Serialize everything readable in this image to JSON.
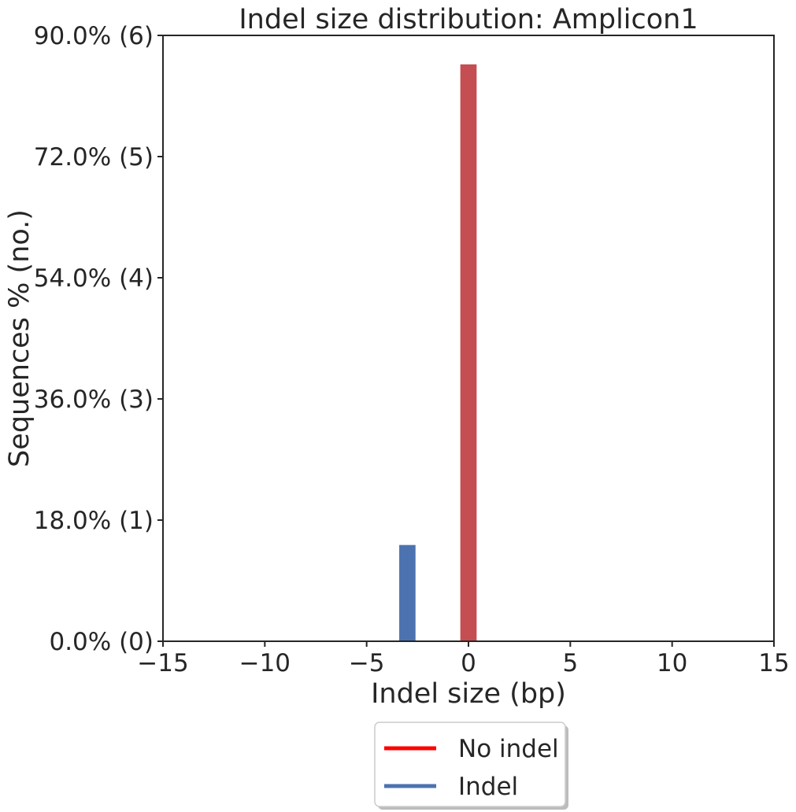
{
  "chart_data": {
    "type": "bar",
    "title": "Indel size distribution: Amplicon1",
    "xlabel": "Indel size (bp)",
    "ylabel": "Sequences % (no.)",
    "xlim": [
      -15,
      15
    ],
    "ylim": [
      0,
      90
    ],
    "x_ticks": [
      -15,
      -10,
      -5,
      0,
      5,
      10,
      15
    ],
    "x_tick_labels": [
      "−15",
      "−10",
      "−5",
      "0",
      "5",
      "10",
      "15"
    ],
    "y_ticks": [
      0,
      18,
      36,
      54,
      72,
      90
    ],
    "y_tick_labels": [
      "0.0% (0)",
      "18.0% (1)",
      "36.0% (3)",
      "54.0% (4)",
      "72.0% (5)",
      "90.0% (6)"
    ],
    "series": [
      {
        "name": "No indel",
        "color": "#c44e52",
        "x": [
          0
        ],
        "values": [
          85.7
        ]
      },
      {
        "name": "Indel",
        "color": "#4c72b0",
        "x": [
          -3
        ],
        "values": [
          14.3
        ]
      }
    ],
    "legend": {
      "position": "bottom-center",
      "entries": [
        {
          "label": "No indel",
          "color": "#ff0000"
        },
        {
          "label": "Indel",
          "color": "#4c72b0"
        }
      ]
    },
    "grid": false
  }
}
